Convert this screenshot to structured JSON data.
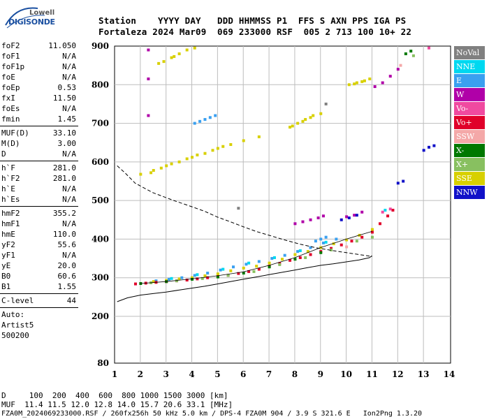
{
  "logo": {
    "line1": "Lowell",
    "line2": "DIGISONDE"
  },
  "header": {
    "labels": "Station    YYYY DAY   DDD HHMMSS P1  FFS S AXN PPS IGA PS",
    "values": "Fortaleza 2024 Mar09  069 233000 RSF  005 2 713 100 10+ 22"
  },
  "params": {
    "group1": [
      {
        "label": "foF2",
        "value": "11.050"
      },
      {
        "label": "foF1",
        "value": "N/A"
      },
      {
        "label": "foF1p",
        "value": "N/A"
      },
      {
        "label": "foE",
        "value": "N/A"
      },
      {
        "label": "foEp",
        "value": "0.53"
      },
      {
        "label": "fxI",
        "value": "11.50"
      },
      {
        "label": "foEs",
        "value": "N/A"
      },
      {
        "label": "fmin",
        "value": "1.45"
      }
    ],
    "group2": [
      {
        "label": "MUF(D)",
        "value": "33.10"
      },
      {
        "label": "M(D)",
        "value": "3.00"
      },
      {
        "label": "D",
        "value": "N/A"
      }
    ],
    "group3": [
      {
        "label": "h`F",
        "value": "281.0"
      },
      {
        "label": "h`F2",
        "value": "281.0"
      },
      {
        "label": "h`E",
        "value": "N/A"
      },
      {
        "label": "h`Es",
        "value": "N/A"
      }
    ],
    "group4": [
      {
        "label": "hmF2",
        "value": "355.2"
      },
      {
        "label": "hmF1",
        "value": "N/A"
      },
      {
        "label": "hmE",
        "value": "110.0"
      },
      {
        "label": "yF2",
        "value": "55.6"
      },
      {
        "label": "yF1",
        "value": "N/A"
      },
      {
        "label": "yE",
        "value": "20.0"
      },
      {
        "label": "B0",
        "value": "60.6"
      },
      {
        "label": "B1",
        "value": "1.55"
      }
    ],
    "clevel": {
      "label": "C-level",
      "value": "44"
    },
    "auto": [
      "Auto:",
      "Artist5",
      "500200"
    ]
  },
  "legend": [
    {
      "label": "NoVal",
      "color": "#808080",
      "text": "#ffffff"
    },
    {
      "label": "NNE",
      "color": "#00d8f0",
      "text": "#ffffff"
    },
    {
      "label": "E",
      "color": "#3aa0f0",
      "text": "#ffffff"
    },
    {
      "label": "W",
      "color": "#b000a8",
      "text": "#ffffff"
    },
    {
      "label": "Vo-",
      "color": "#f04aa0",
      "text": "#ffffff"
    },
    {
      "label": "Vo+",
      "color": "#e0002a",
      "text": "#ffffff"
    },
    {
      "label": "SSW",
      "color": "#f4a8a8",
      "text": "#ffffff"
    },
    {
      "label": "X-",
      "color": "#007800",
      "text": "#ffffff"
    },
    {
      "label": "X+",
      "color": "#88c060",
      "text": "#ffffff"
    },
    {
      "label": "SSE",
      "color": "#d8d000",
      "text": "#ffffff"
    },
    {
      "label": "NNW",
      "color": "#1010c8",
      "text": "#ffffff"
    }
  ],
  "footer": {
    "line1": "D     100  200  400  600  800 1000 1500 3000 [km]",
    "line2": "MUF  11.4 11.5 12.0 12.8 14.0 15.7 20.6 33.1 [MHz]",
    "line3": "FZA0M_2024069233000.RSF / 260fx256h 50 kHz 5.0 km / DPS-4 FZA0M 904 / 3.9 S 321.6 E   Ion2Png 1.3.20"
  },
  "chart_data": {
    "type": "scatter",
    "xlabel": "",
    "ylabel": "",
    "xlim": [
      1,
      14
    ],
    "ylim": [
      80,
      900
    ],
    "y_scale": "piecewise: 80-200 compressed, 200-900 linear",
    "xticks": [
      1,
      2,
      3,
      4,
      5,
      6,
      7,
      8,
      9,
      10,
      11,
      12,
      13,
      14
    ],
    "yticks": [
      80,
      200,
      300,
      400,
      500,
      600,
      700,
      800,
      900
    ],
    "grid": true,
    "legend_placement": "right",
    "series": [
      {
        "name": "SSE",
        "color": "#d8d000",
        "points": [
          [
            2.0,
            568
          ],
          [
            2.5,
            578
          ],
          [
            3.0,
            590
          ],
          [
            3.5,
            600
          ],
          [
            4.0,
            612
          ],
          [
            4.5,
            622
          ],
          [
            5.0,
            635
          ],
          [
            5.5,
            645
          ],
          [
            6.0,
            655
          ],
          [
            2.4,
            572
          ],
          [
            3.2,
            595
          ],
          [
            4.2,
            618
          ],
          [
            5.2,
            640
          ],
          [
            6.6,
            665
          ],
          [
            2.8,
            584
          ],
          [
            3.8,
            608
          ],
          [
            4.8,
            630
          ],
          [
            2.9,
            860
          ],
          [
            3.2,
            870
          ],
          [
            3.5,
            880
          ],
          [
            3.8,
            890
          ],
          [
            4.1,
            895
          ],
          [
            2.7,
            855
          ],
          [
            3.3,
            873
          ],
          [
            7.8,
            690
          ],
          [
            8.1,
            700
          ],
          [
            8.4,
            710
          ],
          [
            8.7,
            720
          ],
          [
            7.9,
            693
          ],
          [
            8.3,
            705
          ],
          [
            8.6,
            715
          ],
          [
            9.0,
            725
          ],
          [
            10.1,
            800
          ],
          [
            10.4,
            805
          ],
          [
            10.7,
            810
          ],
          [
            10.9,
            815
          ],
          [
            10.3,
            802
          ],
          [
            10.6,
            808
          ],
          [
            2.5,
            290
          ],
          [
            3.0,
            293
          ],
          [
            3.5,
            297
          ],
          [
            4.0,
            300
          ],
          [
            4.5,
            305
          ],
          [
            5.0,
            310
          ],
          [
            5.5,
            318
          ],
          [
            6.0,
            325
          ],
          [
            6.5,
            330
          ],
          [
            7.0,
            338
          ],
          [
            7.5,
            348
          ],
          [
            8.0,
            360
          ],
          [
            8.5,
            368
          ],
          [
            9.0,
            378
          ],
          [
            9.5,
            388
          ],
          [
            10.0,
            398
          ],
          [
            10.5,
            410
          ],
          [
            11.0,
            425
          ]
        ]
      },
      {
        "name": "E",
        "color": "#3aa0f0",
        "points": [
          [
            2.6,
            292
          ],
          [
            3.1,
            296
          ],
          [
            3.6,
            300
          ],
          [
            4.1,
            306
          ],
          [
            4.6,
            312
          ],
          [
            5.1,
            320
          ],
          [
            5.6,
            328
          ],
          [
            6.1,
            335
          ],
          [
            6.6,
            342
          ],
          [
            7.1,
            350
          ],
          [
            7.6,
            358
          ],
          [
            8.1,
            368
          ],
          [
            8.6,
            378
          ],
          [
            9.1,
            390
          ],
          [
            9.6,
            400
          ],
          [
            4.1,
            700
          ],
          [
            4.3,
            705
          ],
          [
            4.5,
            710
          ],
          [
            4.7,
            715
          ],
          [
            4.9,
            720
          ],
          [
            9.0,
            400
          ],
          [
            9.2,
            405
          ],
          [
            8.8,
            395
          ]
        ]
      },
      {
        "name": "NNE",
        "color": "#00d8f0",
        "points": [
          [
            3.2,
            298
          ],
          [
            4.2,
            308
          ],
          [
            5.2,
            322
          ],
          [
            6.2,
            338
          ],
          [
            7.2,
            352
          ],
          [
            8.2,
            370
          ],
          [
            9.2,
            392
          ],
          [
            11.5,
            475
          ]
        ]
      },
      {
        "name": "Vo+",
        "color": "#e0002a",
        "points": [
          [
            1.8,
            284
          ],
          [
            2.2,
            286
          ],
          [
            2.6,
            288
          ],
          [
            3.0,
            290
          ],
          [
            3.4,
            292
          ],
          [
            3.8,
            294
          ],
          [
            4.2,
            297
          ],
          [
            4.6,
            300
          ],
          [
            5.0,
            303
          ],
          [
            5.4,
            306
          ],
          [
            5.8,
            311
          ],
          [
            6.2,
            316
          ],
          [
            6.6,
            322
          ],
          [
            7.0,
            330
          ],
          [
            7.4,
            337
          ],
          [
            7.8,
            345
          ],
          [
            8.2,
            352
          ],
          [
            8.6,
            360
          ],
          [
            9.0,
            368
          ],
          [
            9.4,
            376
          ],
          [
            9.8,
            385
          ],
          [
            10.2,
            395
          ],
          [
            10.6,
            405
          ],
          [
            11.0,
            418
          ],
          [
            11.3,
            440
          ],
          [
            11.6,
            460
          ],
          [
            11.8,
            475
          ]
        ]
      },
      {
        "name": "W",
        "color": "#b000a8",
        "points": [
          [
            8.0,
            440
          ],
          [
            8.3,
            445
          ],
          [
            8.6,
            450
          ],
          [
            8.9,
            455
          ],
          [
            9.1,
            460
          ],
          [
            10.0,
            458
          ],
          [
            10.3,
            462
          ],
          [
            10.6,
            470
          ],
          [
            11.1,
            795
          ],
          [
            11.4,
            805
          ],
          [
            11.7,
            822
          ],
          [
            12.0,
            840
          ],
          [
            2.3,
            890
          ],
          [
            2.3,
            815
          ],
          [
            2.3,
            720
          ]
        ]
      },
      {
        "name": "NNW",
        "color": "#1010c8",
        "points": [
          [
            9.8,
            450
          ],
          [
            10.1,
            455
          ],
          [
            10.4,
            462
          ],
          [
            12.0,
            545
          ],
          [
            12.2,
            550
          ],
          [
            13.0,
            630
          ],
          [
            13.2,
            638
          ],
          [
            13.4,
            642
          ]
        ]
      },
      {
        "name": "X-",
        "color": "#007800",
        "points": [
          [
            2.0,
            285
          ],
          [
            3.0,
            290
          ],
          [
            4.0,
            296
          ],
          [
            5.0,
            302
          ],
          [
            6.0,
            312
          ],
          [
            7.0,
            328
          ],
          [
            8.0,
            348
          ],
          [
            9.0,
            365
          ],
          [
            12.3,
            880
          ],
          [
            12.5,
            887
          ]
        ]
      },
      {
        "name": "X+",
        "color": "#88c060",
        "points": [
          [
            2.4,
            287
          ],
          [
            3.4,
            292
          ],
          [
            4.4,
            298
          ],
          [
            5.4,
            306
          ],
          [
            6.4,
            316
          ],
          [
            7.4,
            334
          ],
          [
            8.4,
            352
          ],
          [
            9.4,
            372
          ],
          [
            10.4,
            395
          ],
          [
            11.0,
            405
          ],
          [
            12.6,
            875
          ]
        ]
      },
      {
        "name": "Vo-",
        "color": "#f04aa0",
        "points": [
          [
            11.4,
            470
          ],
          [
            11.7,
            478
          ],
          [
            13.2,
            895
          ]
        ]
      },
      {
        "name": "SSW",
        "color": "#f4a8a8",
        "points": [
          [
            12.1,
            850
          ],
          [
            10.0,
            380
          ]
        ]
      },
      {
        "name": "NoVal",
        "color": "#808080",
        "points": [
          [
            9.2,
            750
          ],
          [
            5.8,
            480
          ]
        ]
      }
    ],
    "lines": [
      {
        "style": "solid",
        "points": [
          [
            1.1,
            238
          ],
          [
            1.5,
            248
          ],
          [
            2.0,
            255
          ],
          [
            2.5,
            259
          ],
          [
            3.0,
            263
          ],
          [
            3.5,
            268
          ],
          [
            4.0,
            273
          ],
          [
            4.5,
            278
          ],
          [
            5.0,
            284
          ],
          [
            5.5,
            290
          ],
          [
            6.0,
            296
          ],
          [
            6.5,
            302
          ],
          [
            7.0,
            308
          ],
          [
            7.5,
            314
          ],
          [
            8.0,
            320
          ],
          [
            8.5,
            326
          ],
          [
            9.0,
            332
          ],
          [
            9.5,
            336
          ],
          [
            10.0,
            341
          ],
          [
            10.5,
            346
          ],
          [
            10.9,
            352
          ],
          [
            11.0,
            357
          ]
        ]
      },
      {
        "style": "dashed",
        "points": [
          [
            1.1,
            590
          ],
          [
            1.4,
            572
          ],
          [
            1.8,
            545
          ],
          [
            2.5,
            520
          ],
          [
            3.3,
            500
          ],
          [
            4.0,
            484
          ],
          [
            4.5,
            472
          ],
          [
            5.0,
            457
          ],
          [
            5.5,
            445
          ],
          [
            6.0,
            432
          ],
          [
            6.5,
            420
          ],
          [
            7.0,
            410
          ],
          [
            7.6,
            398
          ],
          [
            8.2,
            387
          ],
          [
            8.8,
            378
          ],
          [
            9.5,
            370
          ],
          [
            10.2,
            363
          ],
          [
            10.7,
            358
          ],
          [
            11.0,
            355
          ]
        ]
      },
      {
        "style": "solid-thin",
        "points": [
          [
            2.0,
            285
          ],
          [
            3.0,
            290
          ],
          [
            4.0,
            297
          ],
          [
            5.0,
            305
          ],
          [
            6.0,
            315
          ],
          [
            7.0,
            332
          ],
          [
            8.0,
            352
          ],
          [
            9.0,
            378
          ],
          [
            10.0,
            400
          ],
          [
            11.0,
            420
          ]
        ]
      }
    ]
  }
}
